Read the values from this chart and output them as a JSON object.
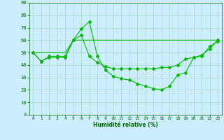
{
  "xlabel": "Humidité relative (%)",
  "background_color": "#cceeff",
  "grid_color": "#aaddcc",
  "line_color": "#00bb00",
  "x_values": [
    0,
    1,
    2,
    3,
    4,
    5,
    6,
    7,
    8,
    9,
    10,
    11,
    12,
    13,
    14,
    15,
    16,
    17,
    18,
    19,
    20,
    21,
    22,
    23
  ],
  "series0": [
    50,
    43,
    47,
    47,
    47,
    60,
    69,
    75,
    47,
    36,
    31,
    29,
    28,
    25,
    23,
    21,
    20,
    23,
    32,
    34,
    46,
    48,
    53,
    60
  ],
  "series1": [
    50,
    43,
    46,
    46,
    46,
    60,
    64,
    47,
    42,
    39,
    37,
    37,
    37,
    37,
    37,
    37,
    38,
    38,
    40,
    45,
    46,
    47,
    55,
    59
  ],
  "series2": [
    50,
    50,
    50,
    50,
    50,
    60,
    60,
    60,
    60,
    60,
    60,
    60,
    60,
    60,
    60,
    60,
    60,
    60,
    60,
    60,
    60,
    60,
    60,
    60
  ],
  "ylim": [
    0,
    90
  ],
  "xlim": [
    -0.5,
    23.5
  ],
  "yticks": [
    0,
    10,
    20,
    30,
    40,
    50,
    60,
    70,
    80,
    90
  ],
  "xticks": [
    0,
    1,
    2,
    3,
    4,
    5,
    6,
    7,
    8,
    9,
    10,
    11,
    12,
    13,
    14,
    15,
    16,
    17,
    18,
    19,
    20,
    21,
    22,
    23
  ]
}
